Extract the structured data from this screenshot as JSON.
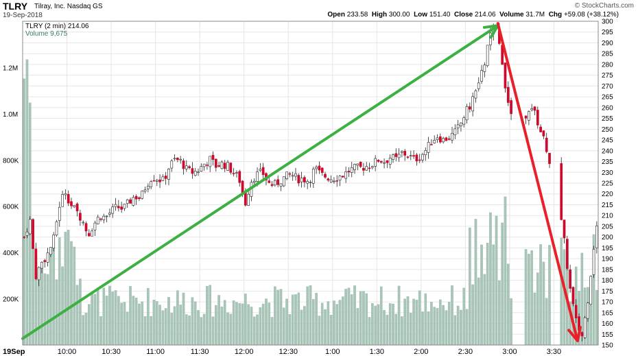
{
  "header": {
    "symbol": "TLRY",
    "company": "Tilray, Inc.",
    "exchange": "Nasdaq GS",
    "date": "19-Sep-2018",
    "brand": "© StockCharts.com",
    "open_label": "Open",
    "open": "233.58",
    "high_label": "High",
    "high": "300.00",
    "low_label": "Low",
    "low": "151.40",
    "close_label": "Close",
    "close": "214.06",
    "volume_label": "Volume",
    "volume": "31.7M",
    "chg_label": "Chg",
    "chg": "+59.08 (+38.12%)"
  },
  "legend": {
    "price": "TLRY (2 min) 214.06",
    "volume": "Volume 9,675"
  },
  "colors": {
    "up_candle": "#ffffff",
    "down_candle": "#cc0a2c",
    "volume_bar": "#a9c5b8",
    "green_arrow": "#3cb043",
    "red_arrow": "#e8202a",
    "grid": "#e6e6e6"
  },
  "chart_data": {
    "type": "candlestick",
    "interval": "2 min",
    "price_axis": {
      "min": 150,
      "max": 300,
      "step": 5,
      "ticks": [
        "150",
        "155",
        "160",
        "165",
        "170",
        "175",
        "180",
        "185",
        "190",
        "195",
        "200",
        "205",
        "210",
        "215",
        "220",
        "225",
        "230",
        "235",
        "240",
        "245",
        "250",
        "255",
        "260",
        "265",
        "270",
        "275",
        "280",
        "285",
        "290",
        "295",
        "300"
      ]
    },
    "volume_axis": {
      "max": 1400000,
      "ticks": [
        {
          "value": 200000,
          "label": "200K"
        },
        {
          "value": 400000,
          "label": "400K"
        },
        {
          "value": 600000,
          "label": "600K"
        },
        {
          "value": 800000,
          "label": "800K"
        },
        {
          "value": 1000000,
          "label": "1.0M"
        },
        {
          "value": 1200000,
          "label": "1.2M"
        }
      ]
    },
    "time_axis": {
      "start": "9:30",
      "end": "4:00",
      "labels": [
        {
          "t": 0,
          "label": "19Sep"
        },
        {
          "t": 30,
          "label": "10:00"
        },
        {
          "t": 60,
          "label": "10:30"
        },
        {
          "t": 90,
          "label": "11:00"
        },
        {
          "t": 120,
          "label": "11:30"
        },
        {
          "t": 150,
          "label": "12:00"
        },
        {
          "t": 180,
          "label": "12:30"
        },
        {
          "t": 210,
          "label": "1:00"
        },
        {
          "t": 240,
          "label": "1:30"
        },
        {
          "t": 270,
          "label": "2:00"
        },
        {
          "t": 300,
          "label": "2:30"
        },
        {
          "t": 330,
          "label": "3:00"
        },
        {
          "t": 360,
          "label": "3:30"
        }
      ]
    },
    "close_path": [
      [
        0,
        200
      ],
      [
        2,
        208
      ],
      [
        4,
        182
      ],
      [
        6,
        188
      ],
      [
        8,
        192
      ],
      [
        10,
        198
      ],
      [
        12,
        214
      ],
      [
        14,
        222
      ],
      [
        16,
        215
      ],
      [
        18,
        212
      ],
      [
        20,
        208
      ],
      [
        22,
        201
      ],
      [
        24,
        206
      ],
      [
        26,
        210
      ],
      [
        28,
        209
      ],
      [
        30,
        212
      ],
      [
        32,
        214
      ],
      [
        34,
        213
      ],
      [
        36,
        216
      ],
      [
        38,
        219
      ],
      [
        40,
        218
      ],
      [
        42,
        224
      ],
      [
        44,
        228
      ],
      [
        46,
        227
      ],
      [
        48,
        226
      ],
      [
        50,
        233
      ],
      [
        52,
        236
      ],
      [
        54,
        235
      ],
      [
        56,
        231
      ],
      [
        58,
        230
      ],
      [
        60,
        231
      ],
      [
        62,
        234
      ],
      [
        64,
        236
      ],
      [
        66,
        233
      ],
      [
        68,
        234
      ],
      [
        70,
        233
      ],
      [
        72,
        230
      ],
      [
        74,
        227
      ],
      [
        76,
        215
      ],
      [
        78,
        226
      ],
      [
        80,
        229
      ],
      [
        82,
        230
      ],
      [
        84,
        225
      ],
      [
        86,
        224
      ],
      [
        88,
        226
      ],
      [
        90,
        228
      ],
      [
        92,
        229
      ],
      [
        94,
        227
      ],
      [
        96,
        227
      ],
      [
        98,
        226
      ],
      [
        100,
        232
      ],
      [
        102,
        229
      ],
      [
        104,
        228
      ],
      [
        106,
        227
      ],
      [
        108,
        228
      ],
      [
        110,
        229
      ],
      [
        112,
        231
      ],
      [
        114,
        232
      ],
      [
        116,
        232
      ],
      [
        118,
        233
      ],
      [
        120,
        234
      ],
      [
        122,
        236
      ],
      [
        124,
        235
      ],
      [
        126,
        237
      ],
      [
        128,
        236
      ],
      [
        130,
        239
      ],
      [
        132,
        238
      ],
      [
        134,
        236
      ],
      [
        136,
        237
      ],
      [
        138,
        240
      ],
      [
        140,
        244
      ],
      [
        142,
        247
      ],
      [
        144,
        245
      ],
      [
        146,
        246
      ],
      [
        148,
        248
      ],
      [
        150,
        252
      ],
      [
        152,
        258
      ],
      [
        154,
        262
      ],
      [
        156,
        270
      ],
      [
        158,
        278
      ],
      [
        160,
        292
      ],
      [
        162,
        298
      ],
      [
        164,
        286
      ],
      [
        166,
        266
      ],
      [
        168,
        254
      ],
      [
        170,
        236
      ],
      [
        172,
        250
      ],
      [
        174,
        262
      ],
      [
        176,
        256
      ],
      [
        178,
        248
      ],
      [
        180,
        240
      ],
      [
        182,
        226
      ],
      [
        184,
        214
      ],
      [
        186,
        196
      ],
      [
        188,
        174
      ],
      [
        190,
        160
      ],
      [
        192,
        154
      ],
      [
        194,
        172
      ],
      [
        196,
        196
      ],
      [
        198,
        214
      ]
    ],
    "annotations": [
      {
        "type": "arrow",
        "color": "green",
        "from": {
          "t": 0,
          "price": 153
        },
        "to": {
          "t": 322,
          "price": 298
        }
      },
      {
        "type": "arrow",
        "color": "red",
        "from": {
          "t": 322,
          "price": 299
        },
        "to": {
          "t": 376,
          "price": 152
        }
      }
    ]
  }
}
